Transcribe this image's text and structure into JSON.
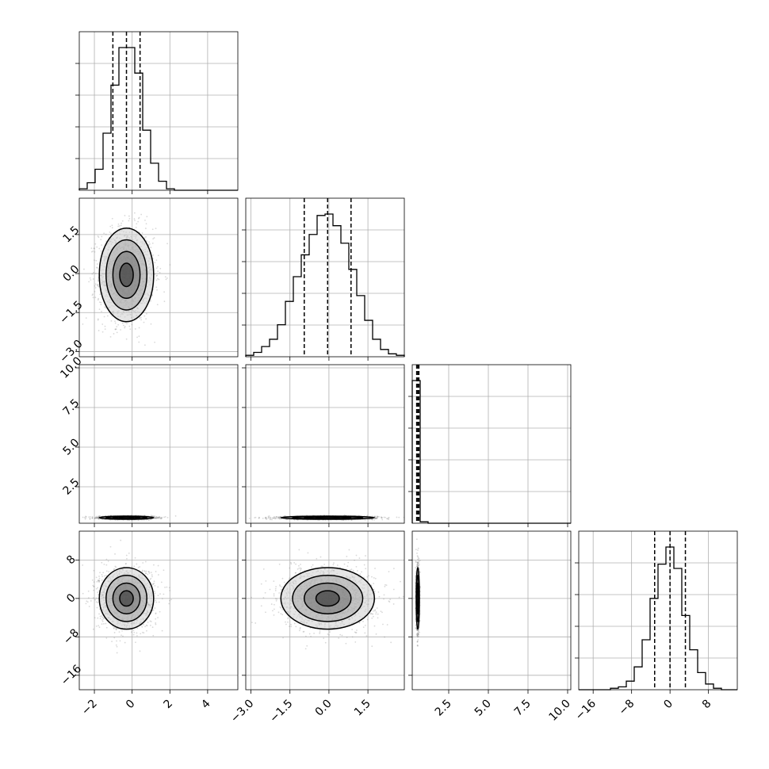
{
  "chart_data": {
    "type": "corner",
    "n_params": 4,
    "colors": {
      "line": "#000000",
      "grid": "#b0b0b0",
      "points": "#808080",
      "background": "#ffffff"
    },
    "grid": true,
    "params": [
      {
        "range": [
          -2.8,
          5.6
        ],
        "ticks": [
          -2,
          0,
          2,
          4
        ],
        "tick_labels": [
          "−2",
          "0",
          "2",
          "4"
        ],
        "mean": -0.3,
        "sd": 0.72,
        "hist": {
          "edges": [
            -2.8,
            -2.38,
            -1.96,
            -1.54,
            -1.12,
            -0.7,
            -0.28,
            0.14,
            0.56,
            0.98,
            1.4,
            1.82,
            2.24,
            2.66,
            3.08,
            3.5,
            3.92,
            4.34,
            4.76,
            5.18,
            5.6
          ],
          "counts": [
            1,
            5,
            14,
            38,
            70,
            95,
            95,
            78,
            40,
            18,
            6,
            1,
            0,
            0,
            0,
            0,
            0,
            0,
            0,
            0
          ]
        },
        "quantiles": [
          -1.02,
          -0.3,
          0.42
        ]
      },
      {
        "range": [
          -3.2,
          2.9
        ],
        "ticks": [
          -3.0,
          -1.5,
          0.0,
          1.5
        ],
        "tick_labels": [
          "−3.0",
          "−1.5",
          "0.0",
          "1.5"
        ],
        "mean": -0.05,
        "sd": 0.9,
        "hist": {
          "edges": [
            -3.2,
            -2.895,
            -2.59,
            -2.285,
            -1.98,
            -1.675,
            -1.37,
            -1.065,
            -0.76,
            -0.455,
            -0.15,
            0.155,
            0.46,
            0.765,
            1.07,
            1.375,
            1.68,
            1.985,
            2.29,
            2.595,
            2.9
          ],
          "counts": [
            1,
            3,
            7,
            12,
            22,
            38,
            55,
            70,
            84,
            97,
            98,
            90,
            78,
            60,
            42,
            25,
            12,
            5,
            2,
            1
          ]
        },
        "quantiles": [
          -0.95,
          -0.05,
          0.85
        ]
      },
      {
        "range": [
          0.2,
          10.2
        ],
        "ticks": [
          2.5,
          5.0,
          7.5,
          10.0
        ],
        "tick_labels": [
          "2.5",
          "5.0",
          "7.5",
          "10.0"
        ],
        "mean": 0.55,
        "sd": 0.05,
        "hist": {
          "edges": [
            0.2,
            0.7,
            1.2,
            1.7,
            2.2,
            2.7,
            3.2,
            3.7,
            4.2,
            4.7,
            5.2,
            5.7,
            6.2,
            6.7,
            7.2,
            7.7,
            8.2,
            8.7,
            9.2,
            9.7,
            10.2
          ],
          "counts": [
            100,
            1,
            0,
            0,
            0,
            0,
            0,
            0,
            0,
            0,
            0,
            0,
            0,
            0,
            0,
            0,
            0,
            0,
            0,
            0
          ]
        },
        "quantiles": [
          0.48,
          0.55,
          0.62
        ]
      },
      {
        "range": [
          -19,
          14
        ],
        "ticks": [
          -16,
          -8,
          0,
          8
        ],
        "tick_labels": [
          "−16",
          "−8",
          "0",
          "8"
        ],
        "mean": 0.0,
        "sd": 3.2,
        "hist": {
          "edges": [
            -19,
            -17.35,
            -15.7,
            -14.05,
            -12.4,
            -10.75,
            -9.1,
            -7.45,
            -5.8,
            -4.15,
            -2.5,
            -0.85,
            0.8,
            2.45,
            4.1,
            5.75,
            7.4,
            9.05,
            10.7,
            12.35,
            14
          ],
          "counts": [
            0,
            0,
            0,
            0,
            1,
            2,
            6,
            16,
            35,
            64,
            88,
            100,
            85,
            52,
            28,
            12,
            4,
            1,
            0,
            0
          ]
        },
        "quantiles": [
          -3.2,
          0.0,
          3.2
        ]
      }
    ],
    "panels_2d": [
      {
        "x": 0,
        "y": 1
      },
      {
        "x": 0,
        "y": 2
      },
      {
        "x": 1,
        "y": 2
      },
      {
        "x": 0,
        "y": 3
      },
      {
        "x": 1,
        "y": 3
      },
      {
        "x": 2,
        "y": 3
      }
    ],
    "contour_levels_sigma": [
      0.5,
      1.0,
      1.5,
      2.0
    ],
    "n_points": 5000
  }
}
